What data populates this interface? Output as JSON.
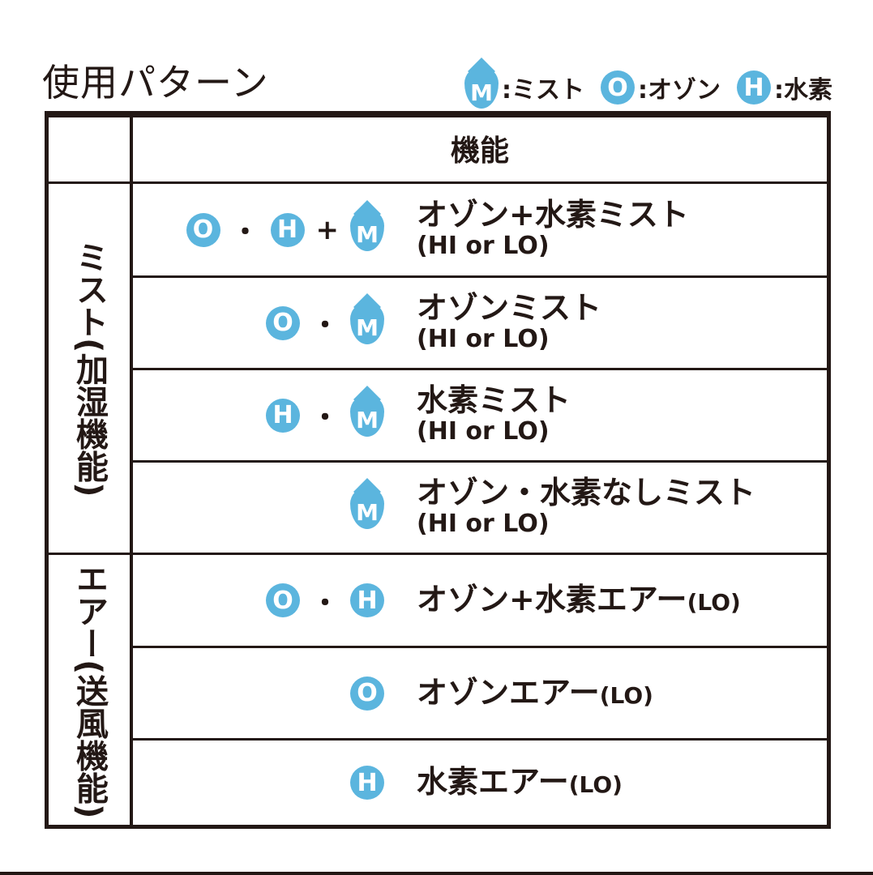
{
  "title": "使用パターン",
  "legend": [
    {
      "icon": "M",
      "shape": "drop",
      "label": ":ミスト"
    },
    {
      "icon": "O",
      "shape": "circle",
      "label": ":オゾン"
    },
    {
      "icon": "H",
      "shape": "circle",
      "label": ":水素"
    }
  ],
  "colors": {
    "icon": "#5bb5de",
    "border": "#231815"
  },
  "table": {
    "header": "機能",
    "groups": [
      {
        "label": "ミスト(加湿機能)"
      },
      {
        "label": "エアー(送風機能)"
      }
    ],
    "rows": [
      {
        "icons": [
          "O",
          "・",
          "H",
          "+",
          "M"
        ],
        "main": "オゾン+水素ミスト",
        "sub": "(HI or LO)"
      },
      {
        "icons": [
          "O",
          "・",
          "M"
        ],
        "main": "オゾンミスト",
        "sub": "(HI or LO)"
      },
      {
        "icons": [
          "H",
          "・",
          "M"
        ],
        "main": "水素ミスト",
        "sub": "(HI or LO)"
      },
      {
        "icons": [
          "M"
        ],
        "main": "オゾン・水素なしミスト",
        "sub": "(HI or LO)"
      },
      {
        "icons": [
          "O",
          "・",
          "H"
        ],
        "main": "オゾン+水素エアー",
        "suffix": "(LO)"
      },
      {
        "icons": [
          "O"
        ],
        "main": "オゾンエアー",
        "suffix": "(LO)"
      },
      {
        "icons": [
          "H"
        ],
        "main": "水素エアー",
        "suffix": "(LO)"
      }
    ]
  }
}
